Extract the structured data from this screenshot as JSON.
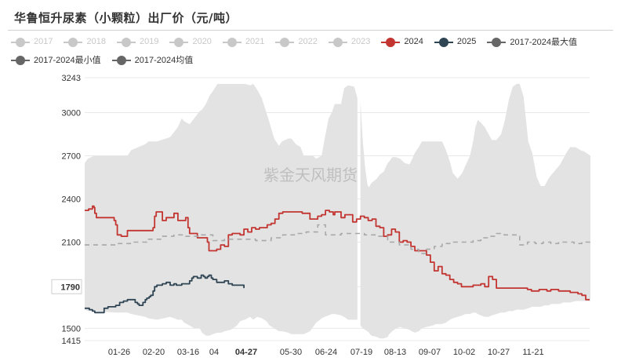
{
  "chart_data": {
    "type": "line",
    "title": "华鲁恒升尿素（小颗粒）出厂价（元/吨）",
    "watermark": "紫金天风期货",
    "ylim": [
      1415,
      3243
    ],
    "y_ticks": [
      "3243",
      "3000",
      "2700",
      "2400",
      "2100",
      "1790",
      "1500",
      "1415"
    ],
    "highlighted_y": "1790",
    "x_ticks": [
      "01-26",
      "02-20",
      "03-16",
      "04",
      "04-27",
      "05-30",
      "06-24",
      "07-19",
      "08-13",
      "09-07",
      "10-02",
      "10-27",
      "11-21"
    ],
    "highlighted_x": "04-27",
    "legend": [
      {
        "name": "2017",
        "color": "#c8c8c8",
        "style": "dot",
        "active": false
      },
      {
        "name": "2018",
        "color": "#c8c8c8",
        "style": "dot",
        "active": false
      },
      {
        "name": "2019",
        "color": "#c8c8c8",
        "style": "dot",
        "active": false
      },
      {
        "name": "2020",
        "color": "#c8c8c8",
        "style": "dot",
        "active": false
      },
      {
        "name": "2021",
        "color": "#c8c8c8",
        "style": "dot",
        "active": false
      },
      {
        "name": "2022",
        "color": "#c8c8c8",
        "style": "dot",
        "active": false
      },
      {
        "name": "2023",
        "color": "#c8c8c8",
        "style": "dot",
        "active": false
      },
      {
        "name": "2024",
        "color": "#c23531",
        "style": "dot",
        "active": true
      },
      {
        "name": "2025",
        "color": "#2f4554",
        "style": "dot",
        "active": true
      },
      {
        "name": "2017-2024最大值",
        "color": "#666666",
        "style": "dot",
        "active": true
      },
      {
        "name": "2017-2024最小值",
        "color": "#666666",
        "style": "dot",
        "active": true
      },
      {
        "name": "2017-2024均值",
        "color": "#666666",
        "style": "dot",
        "active": true
      }
    ],
    "band": {
      "x": [
        0,
        4,
        12,
        40,
        55,
        60,
        78,
        82,
        93,
        110,
        120,
        125,
        128,
        135,
        141,
        148,
        151,
        156,
        161,
        165,
        171,
        176,
        180,
        188,
        196,
        200,
        206,
        213,
        217,
        222,
        228,
        234,
        238,
        244,
        250,
        254,
        262,
        266,
        272,
        278,
        282,
        290,
        294,
        298,
        305,
        309,
        314,
        318,
        322,
        330,
        334,
        339,
        347,
        351
      ],
      "max": [
        2650,
        2680,
        2700,
        2700,
        2700,
        2740,
        2780,
        2800,
        2800,
        2830,
        2900,
        2960,
        2940,
        2920,
        2960,
        3010,
        3020,
        3060,
        3120,
        3150,
        3200,
        3200,
        3200,
        3200,
        3200,
        3200,
        3200,
        3190,
        3200,
        3160,
        3100,
        3000,
        2930,
        2820,
        2770,
        2800,
        2820,
        2820,
        2780,
        2760,
        2700,
        2700,
        2700,
        2680,
        2700,
        2820,
        2960,
        3000,
        3060,
        3060,
        3170,
        3190,
        3180,
        3100
      ],
      "min": [
        1630,
        1620,
        1620,
        1610,
        1610,
        1600,
        1580,
        1570,
        1560,
        1580,
        1560,
        1560,
        1540,
        1520,
        1500,
        1500,
        1470,
        1450,
        1450,
        1460,
        1470,
        1470,
        1480,
        1490,
        1520,
        1550,
        1560,
        1580,
        1560,
        1580,
        1570,
        1550,
        1520,
        1500,
        1480,
        1480,
        1470,
        1460,
        1460,
        1460,
        1460,
        1480,
        1510,
        1540,
        1570,
        1580,
        1590,
        1600,
        1600,
        1590,
        1580,
        1560,
        1560,
        1560
      ]
    },
    "band_tail": {
      "x": [
        355,
        358,
        361,
        364,
        366,
        369,
        376,
        380,
        385,
        390,
        392,
        396,
        401,
        406,
        412,
        418,
        421,
        425,
        430,
        434,
        440,
        448,
        452,
        460,
        465,
        470,
        474,
        480,
        486,
        490,
        496,
        500,
        503,
        506,
        510,
        515,
        520,
        524,
        530,
        536,
        541,
        546,
        551,
        556,
        560,
        565,
        571,
        576,
        582,
        587,
        592,
        597,
        601,
        606,
        612,
        616,
        620,
        625,
        632,
        638,
        643,
        651
      ],
      "max": [
        3080,
        2800,
        2620,
        2500,
        2480,
        2510,
        2540,
        2570,
        2590,
        2650,
        2660,
        2690,
        2690,
        2680,
        2650,
        2640,
        2670,
        2720,
        2760,
        2800,
        2800,
        2800,
        2800,
        2800,
        2740,
        2660,
        2580,
        2540,
        2580,
        2630,
        2700,
        2800,
        2900,
        2950,
        2930,
        2900,
        2850,
        2810,
        2810,
        2850,
        2950,
        3090,
        3180,
        3200,
        3200,
        3110,
        2800,
        2720,
        2550,
        2490,
        2490,
        2540,
        2570,
        2600,
        2640,
        2680,
        2720,
        2760,
        2760,
        2740,
        2730,
        2700
      ],
      "min": [
        1520,
        1500,
        1490,
        1480,
        1470,
        1450,
        1440,
        1430,
        1430,
        1440,
        1460,
        1480,
        1500,
        1510,
        1500,
        1490,
        1480,
        1470,
        1480,
        1500,
        1510,
        1520,
        1530,
        1530,
        1540,
        1560,
        1570,
        1580,
        1590,
        1600,
        1600,
        1610,
        1610,
        1600,
        1590,
        1580,
        1580,
        1590,
        1600,
        1610,
        1610,
        1620,
        1620,
        1630,
        1630,
        1630,
        1640,
        1650,
        1650,
        1650,
        1660,
        1660,
        1670,
        1670,
        1670,
        1680,
        1680,
        1680,
        1690,
        1690,
        1690,
        1690
      ]
    },
    "series": [
      {
        "name": "2024",
        "color": "#c23531",
        "dashed": false,
        "x": [
          0,
          4,
          5,
          10,
          12,
          13,
          15,
          20,
          30,
          36,
          38,
          40,
          42,
          44,
          47,
          50,
          55,
          62,
          70,
          80,
          87,
          88,
          90,
          92,
          94,
          96,
          98,
          100,
          105,
          110,
          115,
          118,
          120,
          125,
          130,
          133,
          135,
          140,
          145,
          150,
          155,
          158,
          160,
          162,
          165,
          170,
          175,
          180,
          185,
          190,
          195,
          200,
          205,
          210,
          215,
          220,
          225,
          230,
          235,
          240,
          245,
          250,
          255,
          260,
          265,
          270,
          275,
          280,
          285,
          290,
          295,
          300,
          305,
          310,
          315,
          320,
          322,
          325,
          330,
          335,
          340,
          345,
          350,
          355,
          360,
          365,
          370,
          375,
          380,
          385,
          390,
          395,
          400,
          405,
          410,
          415,
          420,
          425,
          430,
          435,
          440,
          445,
          450,
          455,
          460,
          465,
          470,
          475,
          480,
          485,
          490,
          495,
          500,
          505,
          510,
          515,
          520,
          525,
          530,
          535,
          540,
          545,
          550,
          555,
          560,
          565,
          570,
          575,
          580,
          585,
          590,
          595,
          600,
          605,
          610,
          615,
          620,
          625,
          630,
          635,
          640,
          645,
          650
        ],
        "y": [
          2320,
          2320,
          2330,
          2350,
          2340,
          2300,
          2270,
          2270,
          2270,
          2270,
          2250,
          2220,
          2150,
          2150,
          2140,
          2140,
          2180,
          2180,
          2180,
          2180,
          2180,
          2200,
          2280,
          2310,
          2310,
          2310,
          2310,
          2250,
          2270,
          2270,
          2300,
          2300,
          2250,
          2250,
          2270,
          2200,
          2160,
          2160,
          2130,
          2130,
          2130,
          2100,
          2040,
          2040,
          2040,
          2050,
          2080,
          2070,
          2150,
          2160,
          2160,
          2150,
          2190,
          2170,
          2200,
          2190,
          2200,
          2200,
          2220,
          2230,
          2260,
          2300,
          2310,
          2310,
          2310,
          2310,
          2310,
          2300,
          2300,
          2260,
          2260,
          2280,
          2290,
          2320,
          2310,
          2290,
          2310,
          2310,
          2270,
          2290,
          2290,
          2240,
          2260,
          2280,
          2270,
          2250,
          2260,
          2210,
          2200,
          2140,
          2150,
          2190,
          2170,
          2100,
          2110,
          2100,
          2070,
          2040,
          2040,
          2040,
          2010,
          1960,
          1900,
          1930,
          1880,
          1870,
          1840,
          1820,
          1810,
          1790,
          1790,
          1790,
          1800,
          1800,
          1810,
          1790,
          1860,
          1840,
          1780,
          1780,
          1780,
          1780,
          1780,
          1780,
          1780,
          1780,
          1770,
          1760,
          1760,
          1770,
          1770,
          1760,
          1770,
          1770,
          1760,
          1760,
          1760,
          1750,
          1750,
          1740,
          1730,
          1700,
          1700
        ],
        "x_scale": "day-index over full year"
      },
      {
        "name": "2025",
        "color": "#2f4554",
        "dashed": false,
        "x": [
          0,
          3,
          6,
          10,
          13,
          16,
          20,
          25,
          30,
          35,
          38,
          40,
          45,
          50,
          55,
          60,
          63,
          65,
          68,
          70,
          75,
          78,
          80,
          83,
          85,
          88,
          90,
          93,
          95,
          98,
          100,
          105,
          108,
          110,
          113,
          115,
          118,
          120,
          125,
          130,
          133,
          135,
          138,
          140,
          143,
          145,
          148,
          150,
          153,
          155,
          158,
          160,
          163,
          165,
          170,
          175,
          180,
          185,
          190,
          195,
          200,
          205
        ],
        "y": [
          1640,
          1640,
          1630,
          1620,
          1610,
          1610,
          1610,
          1640,
          1650,
          1650,
          1650,
          1660,
          1680,
          1690,
          1700,
          1700,
          1700,
          1680,
          1670,
          1660,
          1680,
          1700,
          1710,
          1720,
          1730,
          1760,
          1790,
          1800,
          1800,
          1800,
          1810,
          1820,
          1820,
          1800,
          1800,
          1810,
          1800,
          1800,
          1810,
          1810,
          1810,
          1830,
          1850,
          1860,
          1860,
          1850,
          1850,
          1870,
          1860,
          1850,
          1860,
          1870,
          1850,
          1840,
          1820,
          1820,
          1830,
          1810,
          1800,
          1800,
          1800,
          1780
        ],
        "x_scale": "day-index over partial year"
      },
      {
        "name": "2017-2024均值",
        "color": "#a8a8a8",
        "dashed": true,
        "x": [
          0,
          20,
          40,
          60,
          80,
          100,
          115,
          130,
          150,
          165,
          180,
          200,
          220,
          240,
          255,
          270,
          285,
          300,
          310,
          320,
          330,
          345,
          360,
          375,
          390,
          405,
          420,
          430,
          440,
          450,
          460,
          470,
          480,
          490,
          500,
          510,
          520,
          530,
          540,
          550,
          560,
          570,
          580,
          590,
          600,
          610,
          620,
          630,
          640,
          650
        ],
        "y": [
          2080,
          2080,
          2090,
          2100,
          2120,
          2140,
          2150,
          2140,
          2150,
          2110,
          2120,
          2120,
          2110,
          2130,
          2150,
          2160,
          2170,
          2220,
          2150,
          2150,
          2160,
          2160,
          2150,
          2140,
          2100,
          2080,
          2050,
          2020,
          2050,
          2070,
          2090,
          2100,
          2100,
          2100,
          2110,
          2130,
          2140,
          2160,
          2150,
          2150,
          2080,
          2100,
          2090,
          2100,
          2090,
          2100,
          2100,
          2090,
          2100,
          2070
        ]
      }
    ]
  }
}
